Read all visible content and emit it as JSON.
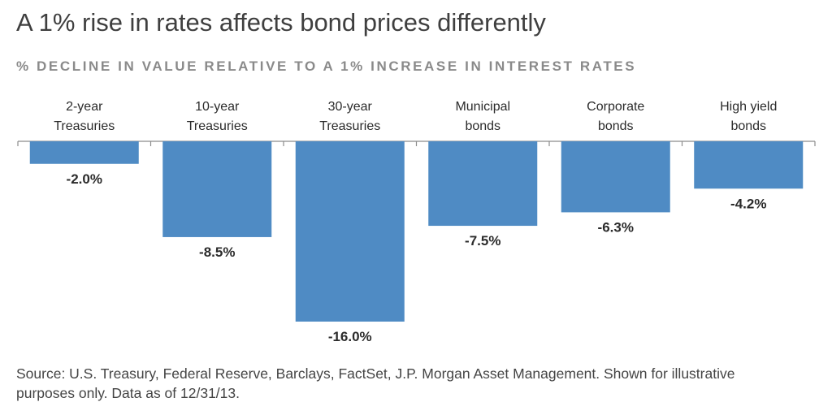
{
  "title": "A 1% rise in rates affects bond prices differently",
  "subtitle": "% DECLINE IN VALUE RELATIVE TO A 1% INCREASE IN INTEREST RATES",
  "source": "Source: U.S. Treasury, Federal Reserve, Barclays, FactSet, J.P. Morgan Asset Management. Shown for illustrative purposes only. Data as of 12/31/13.",
  "colors": {
    "bar": "#4f8bc4",
    "axis": "#8c8c8c",
    "text": "#2b2b2b"
  },
  "chart_data": {
    "type": "bar",
    "title": "A 1% rise in rates affects bond prices differently",
    "subtitle": "% DECLINE IN VALUE RELATIVE TO A 1% INCREASE IN INTEREST RATES",
    "categories": [
      [
        "2-year",
        "Treasuries"
      ],
      [
        "10-year",
        "Treasuries"
      ],
      [
        "30-year",
        "Treasuries"
      ],
      [
        "Municipal",
        "bonds"
      ],
      [
        "Corporate",
        "bonds"
      ],
      [
        "High yield",
        "bonds"
      ]
    ],
    "values": [
      -2.0,
      -8.5,
      -16.0,
      -7.5,
      -6.3,
      -4.2
    ],
    "data_labels": [
      "-2.0%",
      "-8.5%",
      "-16.0%",
      "-7.5%",
      "-6.3%",
      "-4.2%"
    ],
    "ylim": [
      -16,
      0
    ],
    "grid": false,
    "legend": "none"
  }
}
